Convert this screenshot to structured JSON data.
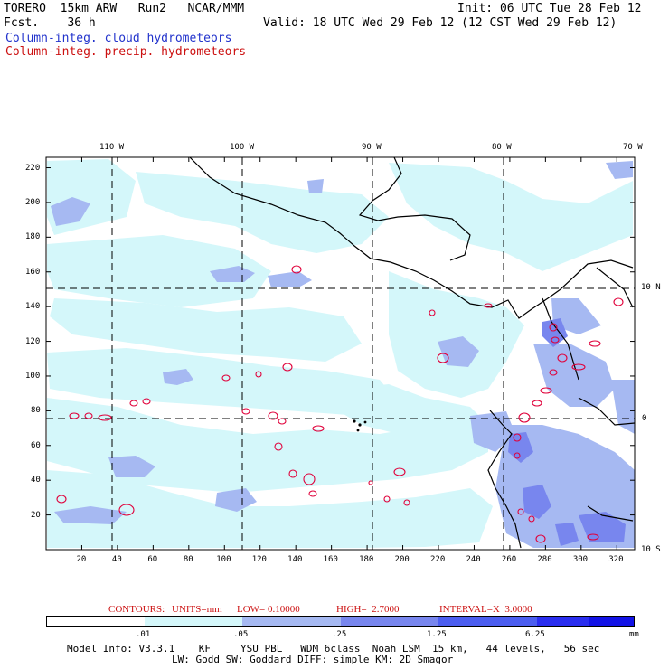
{
  "header": {
    "left_line1": "TORERO  15km ARW   Run2   NCAR/MMM",
    "left_line2": "Fcst.    36 h",
    "right_line1": "Init: 06 UTC Tue 28 Feb 12",
    "right_line2": "Valid: 18 UTC Wed 29 Feb 12 (12 CST Wed 29 Feb 12)",
    "field_cloud": "Column-integ. cloud hydrometeors",
    "field_precip": "Column-integ. precip. hydrometeors"
  },
  "map": {
    "lon_labels": [
      "110 W",
      "100 W",
      "90 W",
      "80 W",
      "70 W"
    ],
    "lat_labels": [
      "10 N",
      "0",
      "10 S"
    ],
    "x_ticks": [
      "20",
      "40",
      "60",
      "80",
      "100",
      "120",
      "140",
      "160",
      "180",
      "200",
      "220",
      "240",
      "260",
      "280",
      "300",
      "320"
    ],
    "y_ticks": [
      "220",
      "200",
      "180",
      "160",
      "140",
      "120",
      "100",
      "80",
      "60",
      "40",
      "20"
    ]
  },
  "contours": {
    "prefix": "CONTOURS:",
    "units": "UNITS=mm",
    "low": "LOW= 0.10000",
    "high": "HIGH=  2.7000",
    "interval": "INTERVAL=X  3.0000"
  },
  "colorbar": {
    "labels": [
      ".01",
      ".05",
      ".25",
      "1.25",
      "6.25"
    ],
    "unit": "mm",
    "colors": [
      "#ffffff",
      "#d4f7fa",
      "#a6b9f2",
      "#7886ee",
      "#4c5ef0",
      "#2a2ef0",
      "#1212e6"
    ]
  },
  "footer": {
    "line1": "Model Info: V3.3.1    KF     YSU PBL   WDM 6class  Noah LSM  15 km,   44 levels,   56 sec",
    "line2": "LW: Godd SW: Goddard DIFF: simple KM: 2D Smagor"
  },
  "colors": {
    "ocean": "#ffffff",
    "cloud_light": "#d4f7fa",
    "cloud_mid": "#a6b9f2",
    "cloud_dark": "#7886ee",
    "precip_contour": "#e0003a"
  }
}
